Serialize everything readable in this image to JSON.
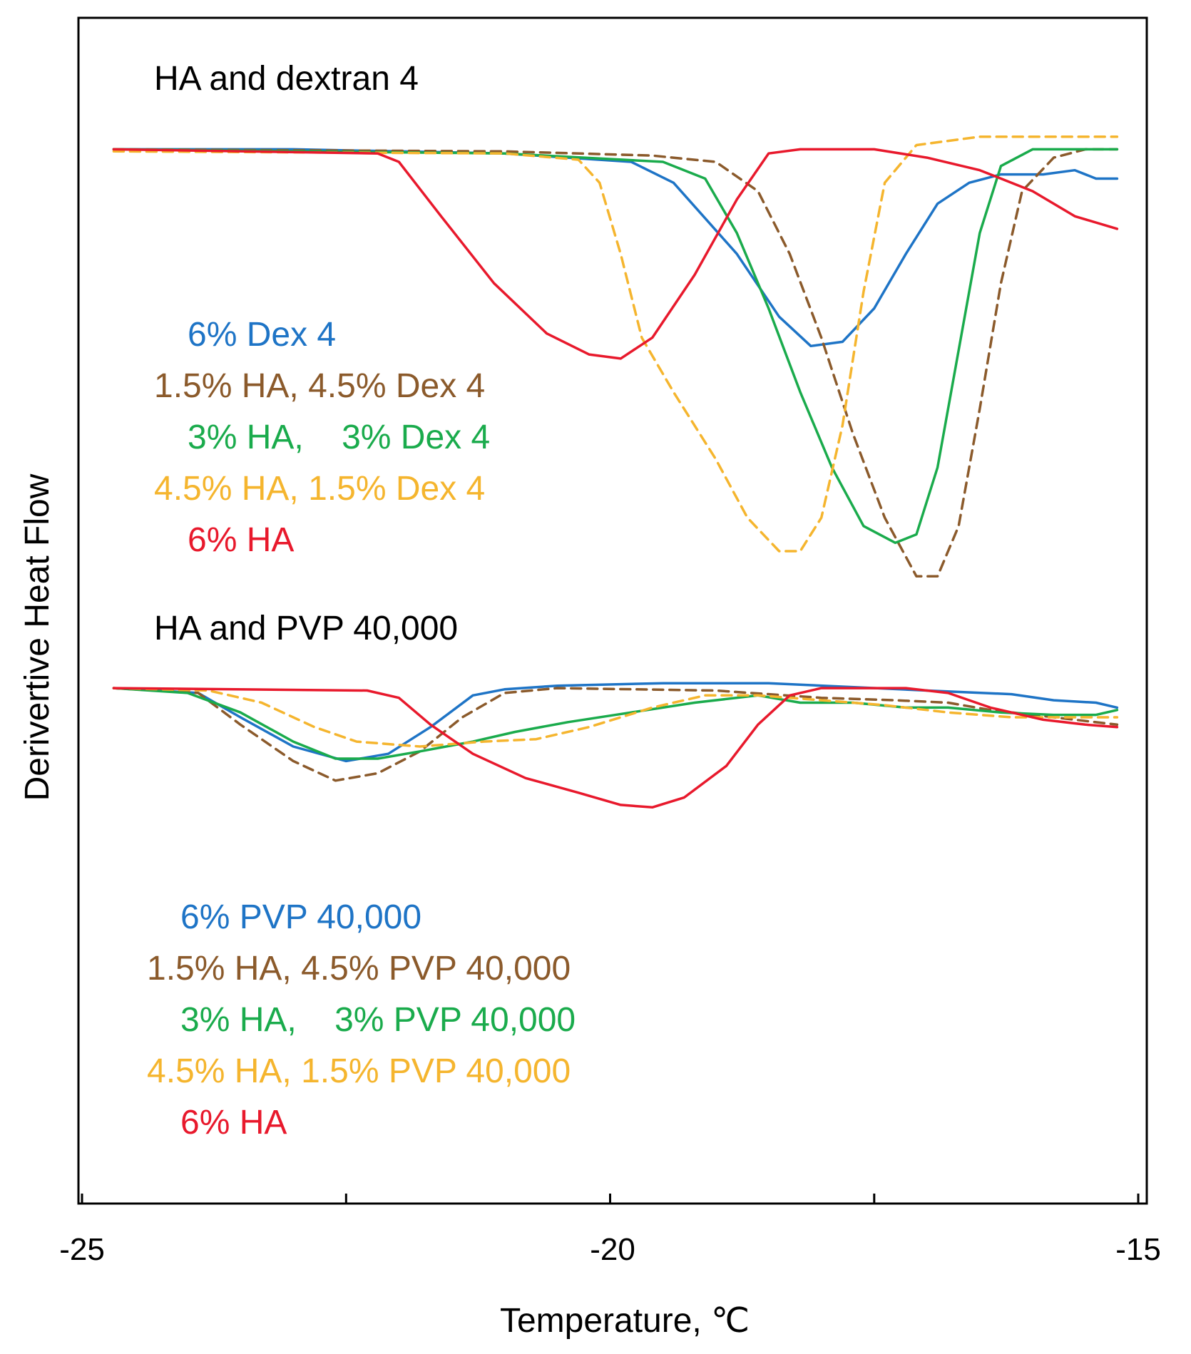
{
  "chart_data": {
    "type": "line",
    "xlabel": "Temperature, ℃",
    "ylabel": "Derivertive Heat Flow",
    "xlim": [
      -25,
      -15
    ],
    "x_tick_labels": [
      "-25",
      "-20",
      "-15"
    ],
    "x_minor_ticks": [
      -22.5,
      -17.5
    ],
    "grid": false,
    "panels": [
      {
        "title": "HA and dextran 4",
        "y_range": [
          -1.04,
          0.05
        ],
        "series": [
          {
            "name": "6% Dex 4",
            "color": "#1e74c6",
            "dash": false,
            "points": [
              [
                -24.7,
                0
              ],
              [
                -23,
                0
              ],
              [
                -21,
                -0.01
              ],
              [
                -19.8,
                -0.03
              ],
              [
                -19.4,
                -0.08
              ],
              [
                -18.8,
                -0.25
              ],
              [
                -18.4,
                -0.4
              ],
              [
                -18.1,
                -0.47
              ],
              [
                -17.8,
                -0.46
              ],
              [
                -17.5,
                -0.38
              ],
              [
                -17.2,
                -0.25
              ],
              [
                -16.9,
                -0.13
              ],
              [
                -16.6,
                -0.08
              ],
              [
                -16.3,
                -0.06
              ],
              [
                -15.9,
                -0.06
              ],
              [
                -15.6,
                -0.05
              ],
              [
                -15.4,
                -0.07
              ],
              [
                -15.2,
                -0.07
              ]
            ]
          },
          {
            "name": "1.5% HA, 4.5% Dex 4",
            "color": "#8b5a2b",
            "dash": true,
            "points": [
              [
                -24.7,
                0
              ],
              [
                -21,
                -0.005
              ],
              [
                -19.6,
                -0.015
              ],
              [
                -19,
                -0.03
              ],
              [
                -18.6,
                -0.1
              ],
              [
                -18.3,
                -0.25
              ],
              [
                -18,
                -0.45
              ],
              [
                -17.7,
                -0.68
              ],
              [
                -17.4,
                -0.88
              ],
              [
                -17.1,
                -1.02
              ],
              [
                -16.9,
                -1.02
              ],
              [
                -16.7,
                -0.9
              ],
              [
                -16.5,
                -0.62
              ],
              [
                -16.3,
                -0.32
              ],
              [
                -16.1,
                -0.1
              ],
              [
                -15.8,
                -0.02
              ],
              [
                -15.5,
                0
              ],
              [
                -15.2,
                0
              ]
            ]
          },
          {
            "name": "3% HA,    3% Dex 4",
            "color": "#1aab4c",
            "dash": false,
            "points": [
              [
                -24.7,
                0
              ],
              [
                -21,
                -0.01
              ],
              [
                -19.5,
                -0.03
              ],
              [
                -19.1,
                -0.07
              ],
              [
                -18.8,
                -0.2
              ],
              [
                -18.5,
                -0.38
              ],
              [
                -18.2,
                -0.58
              ],
              [
                -17.9,
                -0.76
              ],
              [
                -17.6,
                -0.9
              ],
              [
                -17.3,
                -0.94
              ],
              [
                -17.1,
                -0.92
              ],
              [
                -16.9,
                -0.76
              ],
              [
                -16.7,
                -0.48
              ],
              [
                -16.5,
                -0.2
              ],
              [
                -16.3,
                -0.04
              ],
              [
                -16,
                0
              ],
              [
                -15.2,
                0
              ]
            ]
          },
          {
            "name": "4.5% HA, 1.5% Dex 4",
            "color": "#f5b52e",
            "dash": true,
            "points": [
              [
                -24.7,
                -0.005
              ],
              [
                -21,
                -0.01
              ],
              [
                -20.3,
                -0.025
              ],
              [
                -20.1,
                -0.08
              ],
              [
                -19.9,
                -0.25
              ],
              [
                -19.7,
                -0.45
              ],
              [
                -19.4,
                -0.58
              ],
              [
                -19,
                -0.74
              ],
              [
                -18.7,
                -0.88
              ],
              [
                -18.4,
                -0.96
              ],
              [
                -18.2,
                -0.96
              ],
              [
                -18,
                -0.88
              ],
              [
                -17.8,
                -0.66
              ],
              [
                -17.6,
                -0.34
              ],
              [
                -17.4,
                -0.08
              ],
              [
                -17.1,
                0.01
              ],
              [
                -16.5,
                0.03
              ],
              [
                -15.2,
                0.03
              ]
            ]
          },
          {
            "name": "6% HA",
            "color": "#e8192c",
            "dash": false,
            "points": [
              [
                -24.7,
                0
              ],
              [
                -22.2,
                -0.01
              ],
              [
                -22,
                -0.03
              ],
              [
                -21.6,
                -0.16
              ],
              [
                -21.1,
                -0.32
              ],
              [
                -20.6,
                -0.44
              ],
              [
                -20.2,
                -0.49
              ],
              [
                -19.9,
                -0.5
              ],
              [
                -19.6,
                -0.45
              ],
              [
                -19.2,
                -0.3
              ],
              [
                -18.8,
                -0.12
              ],
              [
                -18.5,
                -0.01
              ],
              [
                -18.2,
                0
              ],
              [
                -17.5,
                0
              ],
              [
                -17,
                -0.02
              ],
              [
                -16.5,
                -0.05
              ],
              [
                -16,
                -0.1
              ],
              [
                -15.6,
                -0.16
              ],
              [
                -15.2,
                -0.19
              ]
            ]
          }
        ],
        "legend": [
          {
            "label": "6% Dex 4",
            "color": "#1e74c6"
          },
          {
            "label": "1.5% HA, 4.5% Dex 4",
            "color": "#8b5a2b"
          },
          {
            "label": "3% HA,    3% Dex 4",
            "color": "#1aab4c"
          },
          {
            "label": "4.5% HA, 1.5% Dex 4",
            "color": "#f5b52e"
          },
          {
            "label": "6% HA",
            "color": "#e8192c"
          }
        ]
      },
      {
        "title": "HA and PVP 40,000",
        "y_range": [
          -1.04,
          0.05
        ],
        "series": [
          {
            "name": "6% PVP 40,000",
            "color": "#1e74c6",
            "dash": false,
            "points": [
              [
                -24.7,
                0
              ],
              [
                -23.9,
                -0.02
              ],
              [
                -23.5,
                -0.12
              ],
              [
                -23,
                -0.24
              ],
              [
                -22.5,
                -0.3
              ],
              [
                -22.1,
                -0.27
              ],
              [
                -21.7,
                -0.16
              ],
              [
                -21.3,
                -0.03
              ],
              [
                -21,
                -0.005
              ],
              [
                -20.5,
                0.01
              ],
              [
                -19.5,
                0.02
              ],
              [
                -18.5,
                0.02
              ],
              [
                -17,
                -0.01
              ],
              [
                -16.2,
                -0.025
              ],
              [
                -15.8,
                -0.05
              ],
              [
                -15.4,
                -0.06
              ],
              [
                -15.2,
                -0.08
              ]
            ]
          },
          {
            "name": "1.5% HA, 4.5% PVP 40,000",
            "color": "#8b5a2b",
            "dash": true,
            "points": [
              [
                -24.7,
                0
              ],
              [
                -23.9,
                -0.02
              ],
              [
                -23.5,
                -0.15
              ],
              [
                -23,
                -0.3
              ],
              [
                -22.6,
                -0.38
              ],
              [
                -22.2,
                -0.35
              ],
              [
                -21.8,
                -0.26
              ],
              [
                -21.4,
                -0.12
              ],
              [
                -21,
                -0.02
              ],
              [
                -20.5,
                0
              ],
              [
                -19,
                -0.01
              ],
              [
                -18,
                -0.04
              ],
              [
                -17.3,
                -0.05
              ],
              [
                -16.8,
                -0.06
              ],
              [
                -16.4,
                -0.09
              ],
              [
                -15.8,
                -0.12
              ],
              [
                -15.2,
                -0.15
              ]
            ]
          },
          {
            "name": "3% HA,    3% PVP 40,000",
            "color": "#1aab4c",
            "dash": false,
            "points": [
              [
                -24.7,
                0
              ],
              [
                -24,
                -0.02
              ],
              [
                -23.5,
                -0.1
              ],
              [
                -23,
                -0.22
              ],
              [
                -22.6,
                -0.29
              ],
              [
                -22.2,
                -0.29
              ],
              [
                -21.8,
                -0.26
              ],
              [
                -21.3,
                -0.22
              ],
              [
                -20.9,
                -0.18
              ],
              [
                -20.4,
                -0.14
              ],
              [
                -19.8,
                -0.1
              ],
              [
                -19.2,
                -0.06
              ],
              [
                -18.6,
                -0.03
              ],
              [
                -18.2,
                -0.06
              ],
              [
                -17.7,
                -0.06
              ],
              [
                -17.2,
                -0.08
              ],
              [
                -16.8,
                -0.08
              ],
              [
                -16.3,
                -0.1
              ],
              [
                -15.8,
                -0.11
              ],
              [
                -15.4,
                -0.11
              ],
              [
                -15.2,
                -0.09
              ]
            ]
          },
          {
            "name": "4.5% HA, 1.5% PVP 40,000",
            "color": "#f5b52e",
            "dash": true,
            "points": [
              [
                -24.7,
                0
              ],
              [
                -23.8,
                -0.01
              ],
              [
                -23.3,
                -0.06
              ],
              [
                -22.8,
                -0.16
              ],
              [
                -22.4,
                -0.22
              ],
              [
                -21.8,
                -0.24
              ],
              [
                -21.2,
                -0.22
              ],
              [
                -20.7,
                -0.21
              ],
              [
                -20.2,
                -0.16
              ],
              [
                -19.6,
                -0.08
              ],
              [
                -19.1,
                -0.03
              ],
              [
                -18.6,
                -0.03
              ],
              [
                -18,
                -0.05
              ],
              [
                -17.4,
                -0.07
              ],
              [
                -16.8,
                -0.1
              ],
              [
                -16.2,
                -0.12
              ],
              [
                -15.6,
                -0.12
              ],
              [
                -15.2,
                -0.12
              ]
            ]
          },
          {
            "name": "6% HA",
            "color": "#e8192c",
            "dash": false,
            "points": [
              [
                -24.7,
                0
              ],
              [
                -22.3,
                -0.01
              ],
              [
                -22,
                -0.04
              ],
              [
                -21.7,
                -0.15
              ],
              [
                -21.3,
                -0.27
              ],
              [
                -20.8,
                -0.37
              ],
              [
                -20.3,
                -0.43
              ],
              [
                -19.9,
                -0.48
              ],
              [
                -19.6,
                -0.49
              ],
              [
                -19.3,
                -0.45
              ],
              [
                -18.9,
                -0.32
              ],
              [
                -18.6,
                -0.15
              ],
              [
                -18.3,
                -0.03
              ],
              [
                -18,
                0
              ],
              [
                -17.2,
                0
              ],
              [
                -16.8,
                -0.02
              ],
              [
                -16.4,
                -0.08
              ],
              [
                -15.9,
                -0.13
              ],
              [
                -15.5,
                -0.15
              ],
              [
                -15.2,
                -0.16
              ]
            ]
          }
        ],
        "legend": [
          {
            "label": "6% PVP 40,000",
            "color": "#1e74c6"
          },
          {
            "label": "1.5% HA, 4.5% PVP 40,000",
            "color": "#8b5a2b"
          },
          {
            "label": "3% HA,    3% PVP 40,000",
            "color": "#1aab4c"
          },
          {
            "label": "4.5% HA, 1.5% PVP 40,000",
            "color": "#f5b52e"
          },
          {
            "label": "6% HA",
            "color": "#e8192c"
          }
        ]
      }
    ]
  }
}
